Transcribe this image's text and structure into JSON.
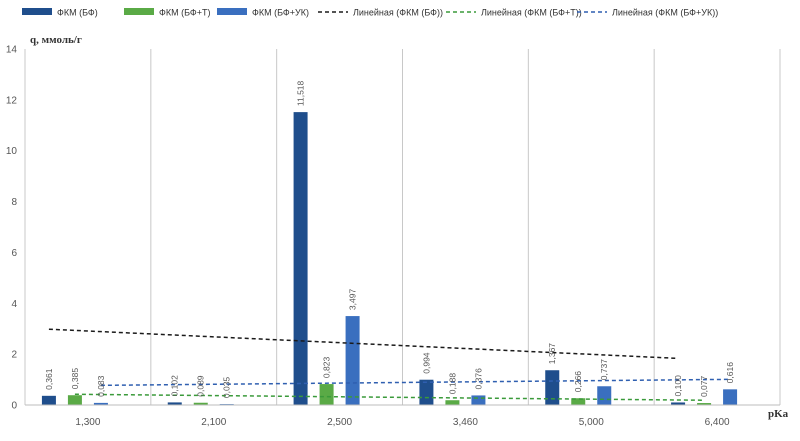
{
  "chart_data": {
    "type": "bar",
    "title": "",
    "xlabel": "pKa",
    "ylabel": "q, ммоль/г",
    "categories": [
      "1,300",
      "2,100",
      "2,500",
      "3,460",
      "5,000",
      "6,400"
    ],
    "ylim": [
      0,
      14
    ],
    "yticks": [
      0,
      2,
      4,
      6,
      8,
      10,
      12,
      14
    ],
    "grid": "vertical",
    "legend_position": "top",
    "series": [
      {
        "name": "ФКМ (БФ)",
        "color": "#1f4e8c",
        "values": [
          0.361,
          0.102,
          11.518,
          0.994,
          1.367,
          0.1
        ],
        "labels": [
          "0,361",
          "0,102",
          "11,518",
          "0,994",
          "1,367",
          "0,100"
        ]
      },
      {
        "name": "ФКМ (БФ+Т)",
        "color": "#5aaa46",
        "values": [
          0.385,
          0.089,
          0.823,
          0.188,
          0.266,
          0.077
        ],
        "labels": [
          "0,385",
          "0,089",
          "0,823",
          "0,188",
          "0,266",
          "0,077"
        ]
      },
      {
        "name": "ФКМ (БФ+УК)",
        "color": "#3a6fbf",
        "values": [
          0.083,
          0.035,
          3.497,
          0.376,
          0.737,
          0.616
        ],
        "labels": [
          "0,083",
          "0,035",
          "3,497",
          "0,376",
          "0,737",
          "0,616"
        ]
      }
    ],
    "trendlines": [
      {
        "name": "Линейная (ФКМ (БФ))",
        "color": "#1a1a1a",
        "series": 0
      },
      {
        "name": "Линейная (ФКМ (БФ+Т))",
        "color": "#3a9a3a",
        "series": 1
      },
      {
        "name": "Линейная (ФКМ (БФ+УК))",
        "color": "#2f5fb0",
        "series": 2
      }
    ]
  }
}
